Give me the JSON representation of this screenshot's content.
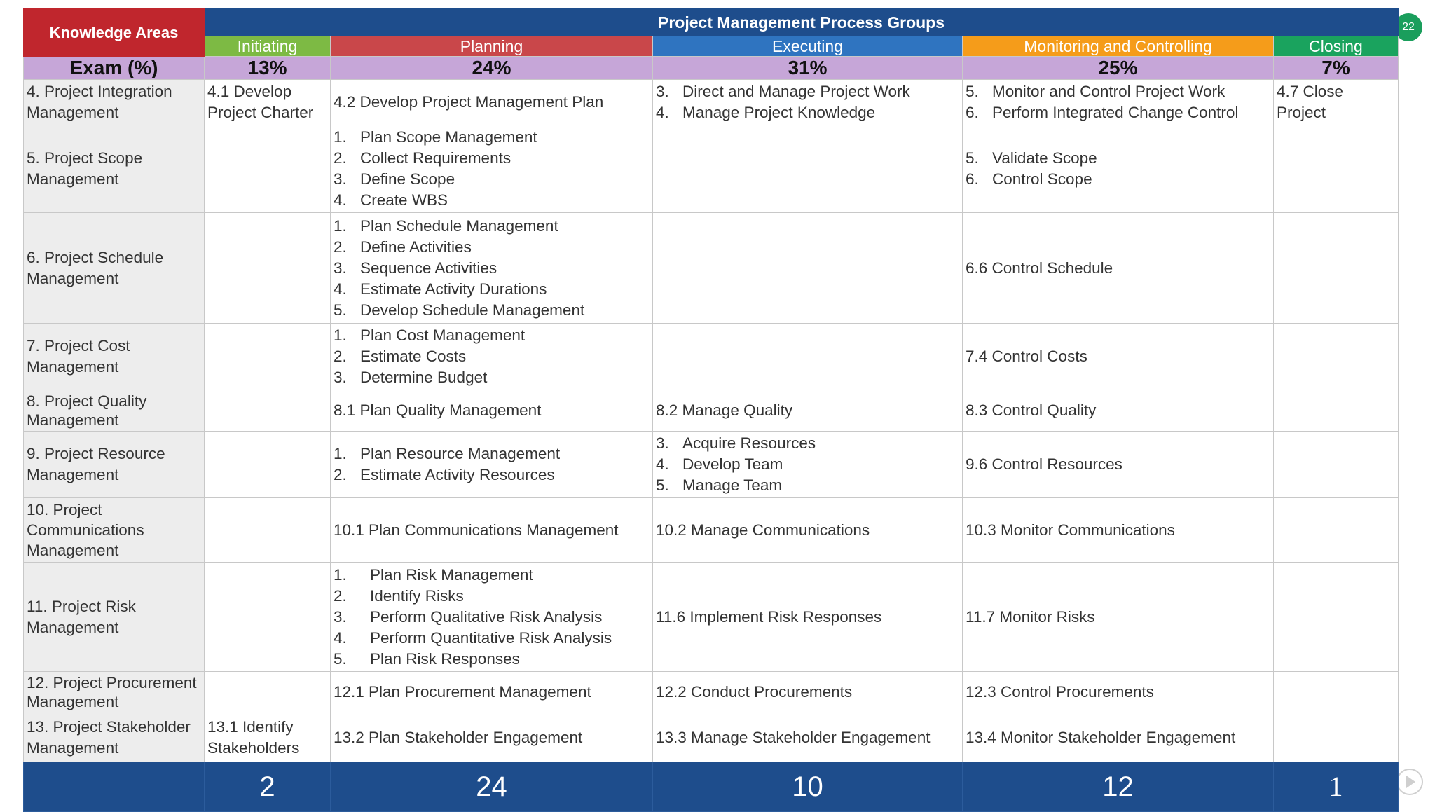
{
  "header": {
    "corner_label": "Knowledge Areas",
    "title": "Project Management Process Groups",
    "exam_label": "Exam (%)"
  },
  "groups": [
    {
      "name": "Initiating",
      "exam_pct": "13%",
      "color": "#7dba44",
      "count": "2"
    },
    {
      "name": "Planning",
      "exam_pct": "24%",
      "color": "#c9474a",
      "count": "24"
    },
    {
      "name": "Executing",
      "exam_pct": "31%",
      "color": "#2f74c0",
      "count": "10"
    },
    {
      "name": "Monitoring and Controlling",
      "exam_pct": "25%",
      "color": "#f59c1a",
      "count": "12"
    },
    {
      "name": "Closing",
      "exam_pct": "7%",
      "color": "#1aa35e",
      "count": "1"
    }
  ],
  "rows": {
    "integration": {
      "area": "4. Project Integration Management",
      "initiating": "4.1 Develop Project Charter",
      "planning": "4.2 Develop Project Management Plan",
      "executing": [
        {
          "n": "3.",
          "t": "Direct and Manage Project Work"
        },
        {
          "n": "4.",
          "t": "Manage Project Knowledge"
        }
      ],
      "monitoring": [
        {
          "n": "5.",
          "t": "Monitor and Control Project Work"
        },
        {
          "n": "6.",
          "t": "Perform Integrated Change Control"
        }
      ],
      "closing": "4.7 Close Project"
    },
    "scope": {
      "area": "5. Project Scope Management",
      "planning": [
        {
          "n": "1.",
          "t": "Plan Scope Management"
        },
        {
          "n": "2.",
          "t": "Collect Requirements"
        },
        {
          "n": "3.",
          "t": "Define Scope"
        },
        {
          "n": "4.",
          "t": "Create WBS"
        }
      ],
      "monitoring": [
        {
          "n": "5.",
          "t": "Validate Scope"
        },
        {
          "n": "6.",
          "t": "Control Scope"
        }
      ]
    },
    "schedule": {
      "area": "6. Project Schedule Management",
      "planning": [
        {
          "n": "1.",
          "t": "Plan Schedule Management"
        },
        {
          "n": "2.",
          "t": "Define Activities"
        },
        {
          "n": "3.",
          "t": "Sequence Activities"
        },
        {
          "n": "4.",
          "t": "Estimate Activity Durations"
        },
        {
          "n": "5.",
          "t": "Develop Schedule Management"
        }
      ],
      "monitoring": "6.6 Control Schedule"
    },
    "cost": {
      "area": "7. Project Cost Management",
      "planning": [
        {
          "n": "1.",
          "t": "Plan Cost Management"
        },
        {
          "n": "2.",
          "t": "Estimate Costs"
        },
        {
          "n": "3.",
          "t": "Determine Budget"
        }
      ],
      "monitoring": "7.4 Control Costs"
    },
    "quality": {
      "area": "8. Project Quality Management",
      "planning": "8.1 Plan Quality Management",
      "executing": "8.2 Manage Quality",
      "monitoring": "8.3 Control Quality"
    },
    "resource": {
      "area": "9. Project Resource Management",
      "planning": [
        {
          "n": "1.",
          "t": "Plan Resource Management"
        },
        {
          "n": "2.",
          "t": "Estimate Activity Resources"
        }
      ],
      "executing": [
        {
          "n": "3.",
          "t": "Acquire Resources"
        },
        {
          "n": "4.",
          "t": "Develop Team"
        },
        {
          "n": "5.",
          "t": "Manage Team"
        }
      ],
      "monitoring": "9.6 Control Resources"
    },
    "communications": {
      "area": "10. Project Communications Management",
      "planning": "10.1 Plan Communications Management",
      "executing": "10.2 Manage Communications",
      "monitoring": "10.3 Monitor Communications"
    },
    "risk": {
      "area": "11. Project Risk Management",
      "planning": [
        {
          "n": "1.",
          "t": "Plan Risk Management"
        },
        {
          "n": "2.",
          "t": "Identify Risks"
        },
        {
          "n": "3.",
          "t": "Perform Qualitative Risk Analysis"
        },
        {
          "n": "4.",
          "t": "Perform Quantitative Risk Analysis"
        },
        {
          "n": "5.",
          "t": "Plan Risk Responses"
        }
      ],
      "executing": "11.6 Implement Risk Responses",
      "monitoring": "11.7 Monitor Risks"
    },
    "procurement": {
      "area": "12. Project Procurement Management",
      "planning": "12.1 Plan Procurement Management",
      "executing": "12.2 Conduct Procurements",
      "monitoring": "12.3 Control Procurements"
    },
    "stakeholder": {
      "area": "13. Project Stakeholder Management",
      "initiating": "13.1 Identify Stakeholders",
      "planning": "13.2 Plan Stakeholder Engagement",
      "executing": "13.3 Manage Stakeholder Engagement",
      "monitoring": "13.4 Monitor Stakeholder Engagement"
    }
  },
  "slide": {
    "page_number": "22"
  }
}
